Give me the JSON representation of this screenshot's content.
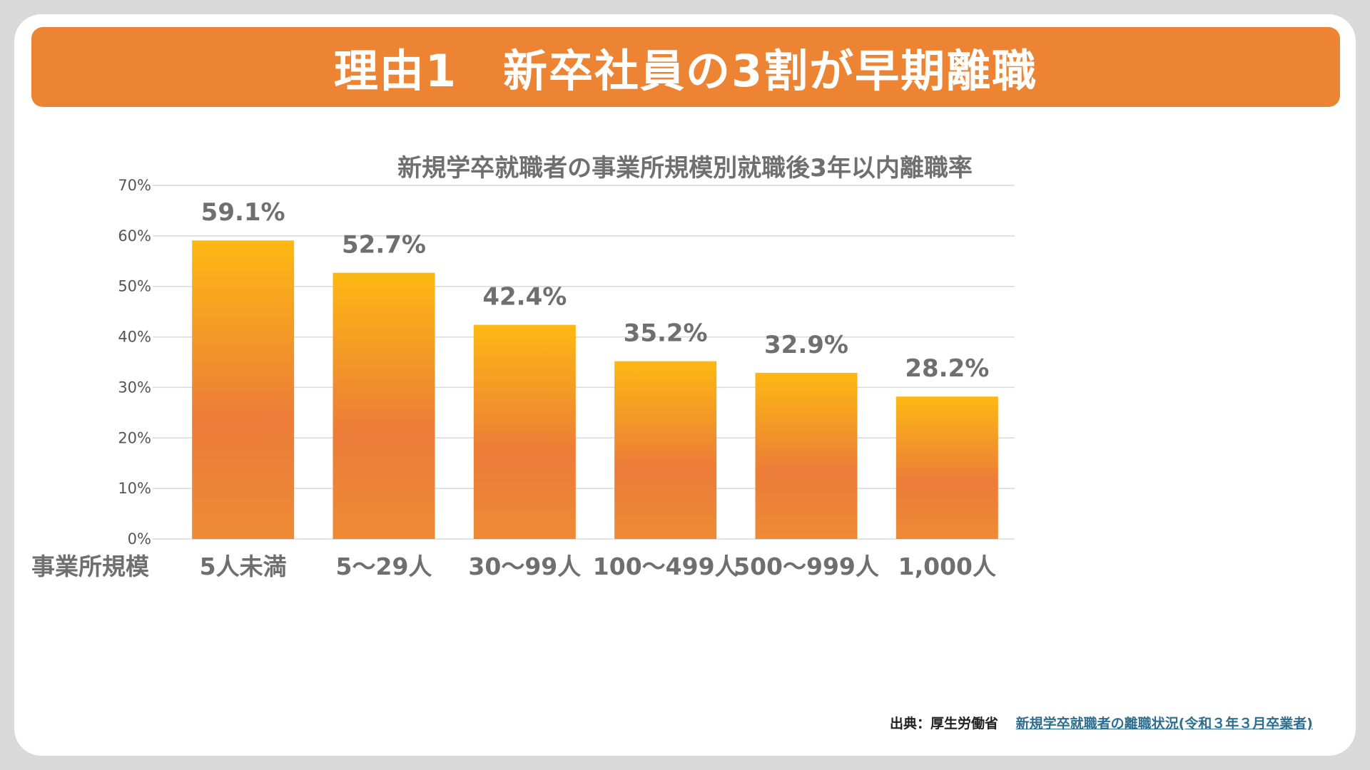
{
  "banner": {
    "title": "理由1　新卒社員の3割が早期離職"
  },
  "source": {
    "label": "出典：厚生労働省",
    "link_text": "新規学卒就職者の離職状況(令和３年３月卒業者)"
  },
  "colors": {
    "banner": "#ec8434",
    "bar_top": "#fdb813",
    "bar_bottom": "#ec7c38",
    "grid": "#d9d9d9",
    "label_gray": "#6f6f6f"
  },
  "chart_data": {
    "type": "bar",
    "title": "新規学卒就職者の事業所規模別就職後3年以内離職率",
    "xlabel": "事業所規模",
    "ylabel": "",
    "categories": [
      "5人未満",
      "5〜29人",
      "30〜99人",
      "100〜499人",
      "500〜999人",
      "1,000人"
    ],
    "values": [
      59.1,
      52.7,
      42.4,
      35.2,
      32.9,
      28.2
    ],
    "value_labels": [
      "59.1%",
      "52.7%",
      "42.4%",
      "35.2%",
      "32.9%",
      "28.2%"
    ],
    "ylim": [
      0,
      70
    ],
    "yticks": [
      0,
      10,
      20,
      30,
      40,
      50,
      60,
      70
    ],
    "ytick_labels": [
      "0%",
      "10%",
      "20%",
      "30%",
      "40%",
      "50%",
      "60%",
      "70%"
    ],
    "grid": true,
    "legend": "none"
  }
}
